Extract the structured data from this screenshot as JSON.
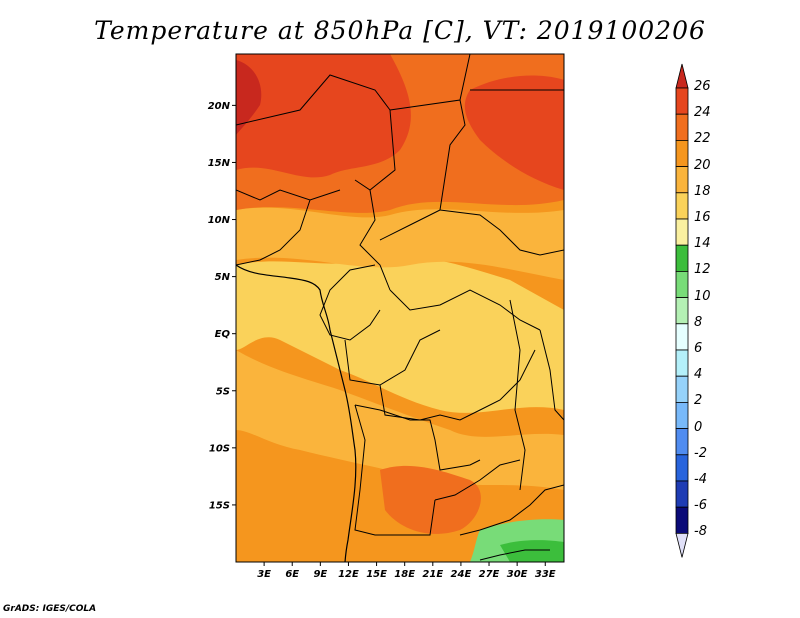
{
  "title": "Temperature at 850hPa [C], VT: 2019100206",
  "credit": "GrADS: IGES/COLA",
  "map": {
    "lon_range": [
      0,
      35
    ],
    "lat_range": [
      -20,
      24.5
    ],
    "lat_ticks": [
      {
        "value": 20,
        "label": "20N"
      },
      {
        "value": 15,
        "label": "15N"
      },
      {
        "value": 10,
        "label": "10N"
      },
      {
        "value": 5,
        "label": "5N"
      },
      {
        "value": 0,
        "label": "EQ"
      },
      {
        "value": -5,
        "label": "5S"
      },
      {
        "value": -10,
        "label": "10S"
      },
      {
        "value": -15,
        "label": "15S"
      }
    ],
    "lon_ticks": [
      {
        "value": 3,
        "label": "3E"
      },
      {
        "value": 6,
        "label": "6E"
      },
      {
        "value": 9,
        "label": "9E"
      },
      {
        "value": 12,
        "label": "12E"
      },
      {
        "value": 15,
        "label": "15E"
      },
      {
        "value": 18,
        "label": "18E"
      },
      {
        "value": 21,
        "label": "21E"
      },
      {
        "value": 24,
        "label": "24E"
      },
      {
        "value": 27,
        "label": "27E"
      },
      {
        "value": 30,
        "label": "30E"
      },
      {
        "value": 33,
        "label": "33E"
      }
    ]
  },
  "colorbar": {
    "labels": [
      "26",
      "24",
      "22",
      "20",
      "18",
      "16",
      "14",
      "12",
      "10",
      "8",
      "6",
      "4",
      "2",
      "0",
      "-2",
      "-4",
      "-6",
      "-8"
    ],
    "colors": [
      "#c8281e",
      "#e6461e",
      "#f06e1e",
      "#f5961e",
      "#fab43c",
      "#fad25a",
      "#faf0a0",
      "#3cbe3c",
      "#78dc78",
      "#b4f0b4",
      "#e6ffff",
      "#b4f0fa",
      "#96d2fa",
      "#78b9fa",
      "#508cf0",
      "#2864dc",
      "#1e3cb4",
      "#0a0a78"
    ],
    "top_color": "#c8281e",
    "bottom_color": "#e0e0f8"
  }
}
